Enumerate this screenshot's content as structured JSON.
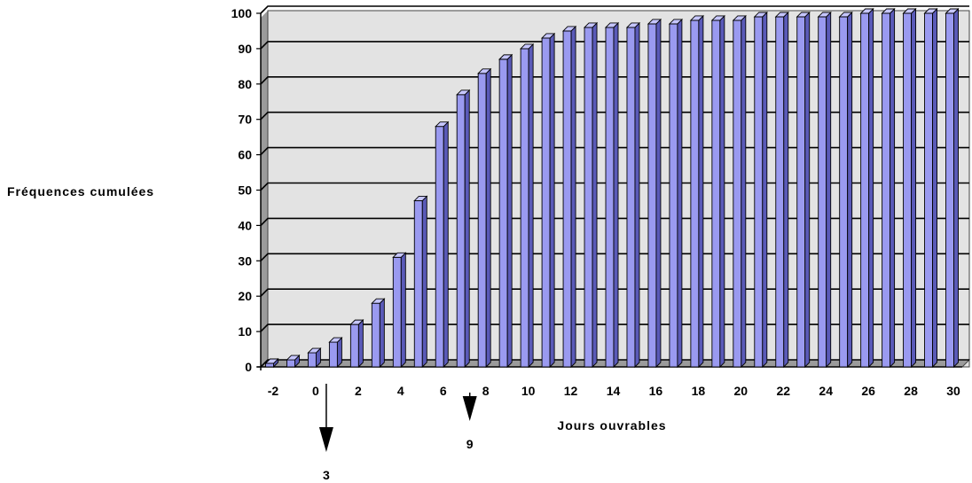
{
  "chart_data": {
    "type": "bar",
    "style": "3d-column",
    "x": [
      -2,
      -1,
      0,
      1,
      2,
      3,
      4,
      5,
      6,
      7,
      8,
      9,
      10,
      11,
      12,
      13,
      14,
      15,
      16,
      17,
      18,
      19,
      20,
      21,
      22,
      23,
      24,
      25,
      26,
      27,
      28,
      29,
      30
    ],
    "values": [
      1,
      2,
      4,
      7,
      12,
      18,
      31,
      47,
      68,
      77,
      83,
      87,
      90,
      93,
      95,
      96,
      96,
      96,
      97,
      97,
      98,
      98,
      98,
      99,
      99,
      99,
      99,
      99,
      100,
      100,
      100,
      100,
      100
    ],
    "xticks": [
      -2,
      0,
      2,
      4,
      6,
      8,
      10,
      12,
      14,
      16,
      18,
      20,
      22,
      24,
      26,
      28,
      30
    ],
    "yticks": [
      0,
      10,
      20,
      30,
      40,
      50,
      60,
      70,
      80,
      90,
      100
    ],
    "ylim": [
      0,
      100
    ],
    "xlabel": "Jours ouvrables",
    "ylabel": "Fréquences cumulées",
    "grid": true,
    "colors": {
      "bar_front": "#9a9af0",
      "bar_side": "#5a5ab8",
      "bar_top": "#c6c6ff",
      "plot_bg": "#e3e3e3",
      "wall": "#9b9b9b"
    },
    "annotations": [
      {
        "label": "3",
        "x": 0.5
      },
      {
        "label": "9",
        "x": 7.25
      }
    ]
  }
}
